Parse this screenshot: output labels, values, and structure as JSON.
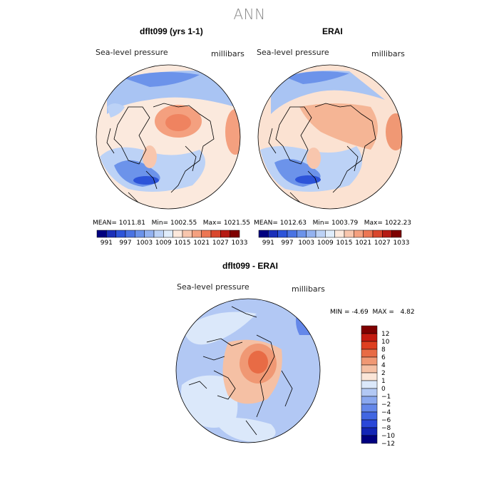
{
  "title": "ANN",
  "colors": {
    "abs_scale": [
      "#000080",
      "#1a2fb8",
      "#2d54d9",
      "#4a73e3",
      "#6c93ea",
      "#93b2f0",
      "#bcd2f6",
      "#e0edfb",
      "#fde9dc",
      "#f8c6ad",
      "#f4a07f",
      "#ec7653",
      "#d9472d",
      "#b51a13",
      "#7f0000"
    ],
    "diff_scale": [
      "#000080",
      "#1326b6",
      "#2a47d8",
      "#4166e2",
      "#6487e9",
      "#8aa8ef",
      "#b2c8f4",
      "#dbe8fa",
      "#fbe6d8",
      "#f5c0a4",
      "#f09874",
      "#e86b45",
      "#de3f20",
      "#c41b10",
      "#7f0000"
    ],
    "land_outline": "#000000"
  },
  "panels": [
    {
      "title": "dflt099 (yrs 1-1)",
      "variable": "Sea-level pressure",
      "units": "millibars",
      "mean_label": "MEAN=",
      "mean": "1011.81",
      "min_label": "Min=",
      "min": "1002.55",
      "max_label": "Max=",
      "max": "1021.55"
    },
    {
      "title": "ERAI",
      "variable": "Sea-level pressure",
      "units": "millibars",
      "mean_label": "MEAN=",
      "mean": "1012.63",
      "min_label": "Min=",
      "min": "1003.79",
      "max_label": "Max=",
      "max": "1022.23"
    }
  ],
  "abs_colorbar_ticks": [
    "991",
    "997",
    "1003",
    "1009",
    "1015",
    "1021",
    "1027",
    "1033"
  ],
  "difference": {
    "title": "dflt099 - ERAI",
    "variable": "Sea-level pressure",
    "units": "millibars",
    "min_label": "MIN =",
    "min": "-4.69",
    "max_label": "MAX =",
    "max": "4.82",
    "colorbar_ticks": [
      "12",
      "10",
      "8",
      "6",
      "4",
      "2",
      "1",
      "0",
      "−1",
      "−2",
      "−4",
      "−6",
      "−8",
      "−10",
      "−12"
    ]
  }
}
